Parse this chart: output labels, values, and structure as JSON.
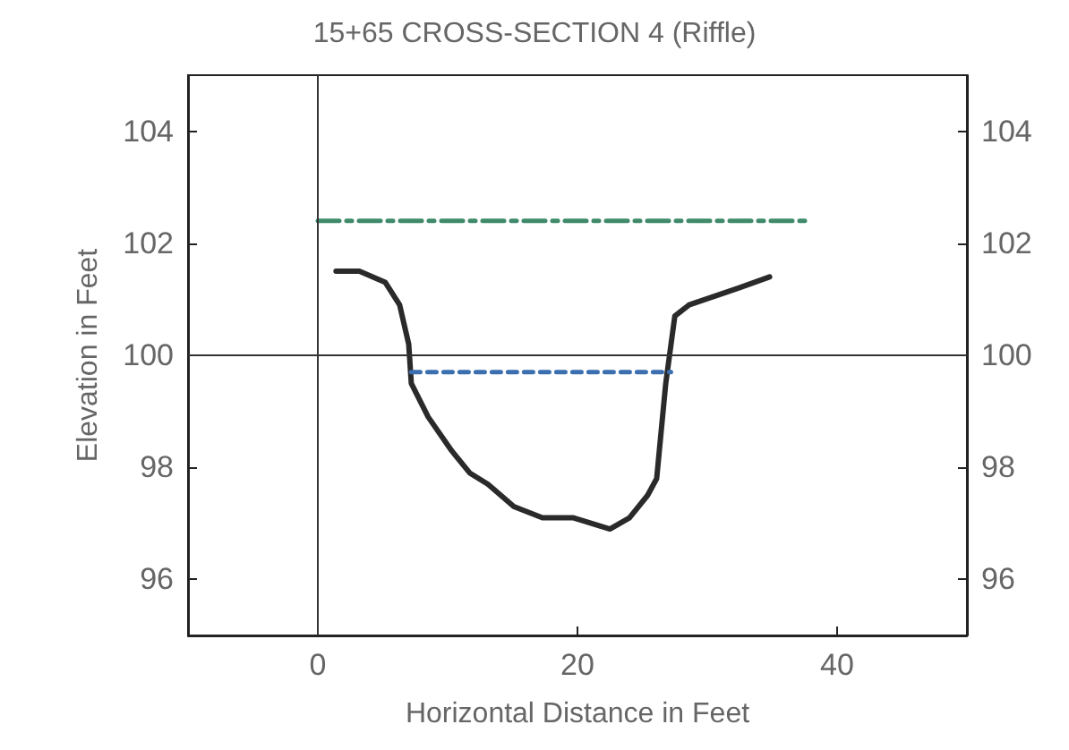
{
  "chart_data": {
    "type": "line",
    "title": "15+65 CROSS-SECTION 4 (Riffle)",
    "xlabel": "Horizontal Distance in Feet",
    "ylabel": "Elevation in Feet",
    "xlim": [
      -10,
      50
    ],
    "xticks": [
      0,
      20,
      40
    ],
    "ylim": [
      95,
      105
    ],
    "yticks": [
      96,
      98,
      100,
      102,
      104
    ],
    "y2lim": [
      95,
      105
    ],
    "y2ticks": [
      96,
      98,
      100,
      102,
      104
    ],
    "grid": false,
    "marker": "none",
    "ref_lines": [
      {
        "axis": "x",
        "value": 0,
        "color": "#333333"
      },
      {
        "axis": "y",
        "value": 100,
        "color": "#333333"
      }
    ],
    "series": [
      {
        "color": "#2a2a2a",
        "line_style": "solid",
        "x": [
          1.4,
          3.2,
          5.2,
          6.3,
          7.0,
          7.2,
          8.5,
          10.3,
          11.7,
          13.1,
          15.1,
          17.3,
          19.7,
          21.1,
          22.5,
          24.0,
          25.4,
          26.1,
          26.8,
          27.5,
          28.6,
          32.4,
          34.8
        ],
        "values": [
          101.5,
          101.5,
          101.3,
          100.9,
          100.2,
          99.5,
          98.9,
          98.3,
          97.9,
          97.7,
          97.3,
          97.1,
          97.1,
          97.0,
          96.9,
          97.1,
          97.5,
          97.8,
          99.5,
          100.7,
          100.9,
          101.2,
          101.4
        ]
      },
      {
        "color": "#3b6fb0",
        "line_style": "dotted",
        "x": [
          7.2,
          27.2
        ],
        "values": [
          99.7,
          99.7
        ]
      },
      {
        "color": "#3f8a6a",
        "line_style": "dashed",
        "x": [
          0,
          38
        ],
        "values": [
          102.4,
          102.4
        ]
      }
    ]
  }
}
